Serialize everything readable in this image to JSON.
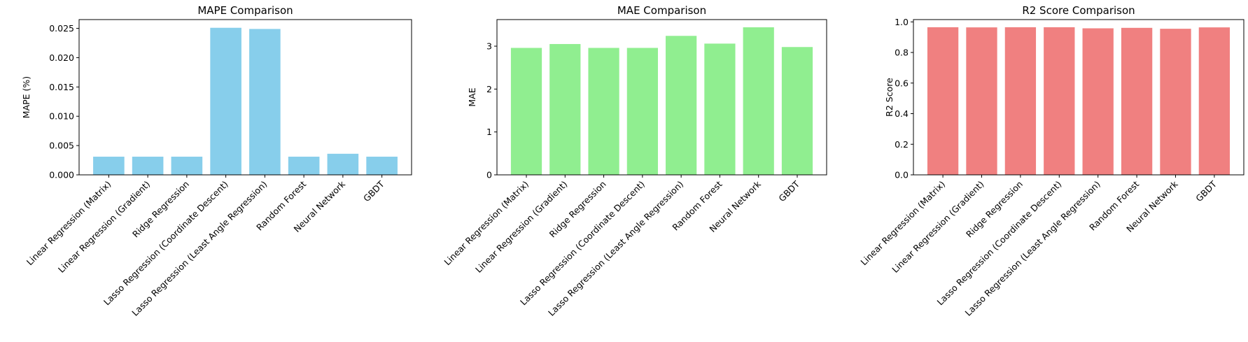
{
  "chart_data": [
    {
      "type": "bar",
      "title": "MAPE Comparison",
      "xlabel": "",
      "ylabel": "MAPE (%)",
      "color": "#87ceeb",
      "categories": [
        "Linear Regression (Matrix)",
        "Linear Regression (Gradient)",
        "Ridge Regression",
        "Lasso Regression (Coordinate Descent)",
        "Lasso Regression (Least Angle Regression)",
        "Random Forest",
        "Neural Network",
        "GBDT"
      ],
      "values": [
        0.0031,
        0.0031,
        0.0031,
        0.0251,
        0.0249,
        0.0031,
        0.0036,
        0.0031
      ],
      "ylim": [
        0,
        0.0265
      ],
      "yticks": [
        0,
        0.005,
        0.01,
        0.015,
        0.02,
        0.025
      ],
      "ytick_labels": [
        "0.000",
        "0.005",
        "0.010",
        "0.015",
        "0.020",
        "0.025"
      ]
    },
    {
      "type": "bar",
      "title": "MAE Comparison",
      "xlabel": "",
      "ylabel": "MAE",
      "color": "#90ee90",
      "categories": [
        "Linear Regression (Matrix)",
        "Linear Regression (Gradient)",
        "Ridge Regression",
        "Lasso Regression (Coordinate Descent)",
        "Lasso Regression (Least Angle Regression)",
        "Random Forest",
        "Neural Network",
        "GBDT"
      ],
      "values": [
        2.96,
        3.05,
        2.96,
        2.96,
        3.24,
        3.06,
        3.44,
        2.98
      ],
      "ylim": [
        0,
        3.62
      ],
      "yticks": [
        0,
        1,
        2,
        3
      ],
      "ytick_labels": [
        "0",
        "1",
        "2",
        "3"
      ]
    },
    {
      "type": "bar",
      "title": "R2 Score Comparison",
      "xlabel": "",
      "ylabel": "R2 Score",
      "color": "#f08080",
      "categories": [
        "Linear Regression (Matrix)",
        "Linear Regression (Gradient)",
        "Ridge Regression",
        "Lasso Regression (Coordinate Descent)",
        "Lasso Regression (Least Angle Regression)",
        "Random Forest",
        "Neural Network",
        "GBDT"
      ],
      "values": [
        0.965,
        0.964,
        0.965,
        0.965,
        0.958,
        0.961,
        0.955,
        0.964
      ],
      "ylim": [
        0,
        1.015
      ],
      "yticks": [
        0,
        0.2,
        0.4,
        0.6,
        0.8,
        1.0
      ],
      "ytick_labels": [
        "0.0",
        "0.2",
        "0.4",
        "0.6",
        "0.8",
        "1.0"
      ]
    }
  ]
}
